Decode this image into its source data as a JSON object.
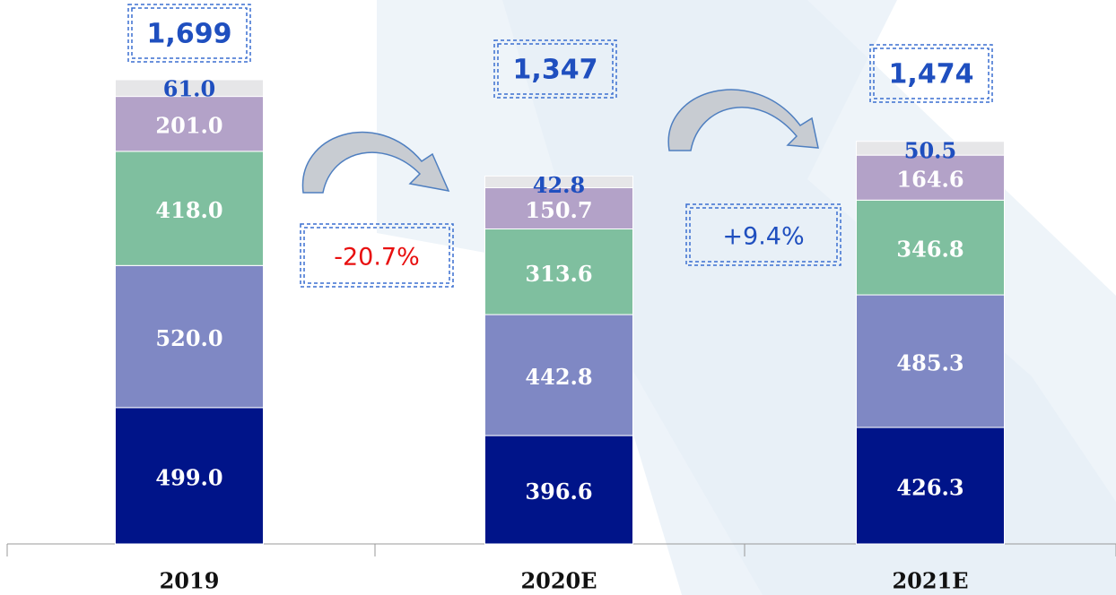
{
  "chart_data": {
    "type": "stacked_bar",
    "categories": [
      "2019",
      "2020E",
      "2021E"
    ],
    "ylim": [
      0,
      1700
    ],
    "series": [
      {
        "color": "#001489",
        "values": [
          499.0,
          396.6,
          426.3
        ],
        "value_labels": [
          "499.0",
          "396.6",
          "426.3"
        ]
      },
      {
        "color": "#7f88c4",
        "values": [
          520.0,
          442.8,
          485.3
        ],
        "value_labels": [
          "520.0",
          "442.8",
          "485.3"
        ]
      },
      {
        "color": "#7fbf9f",
        "values": [
          418.0,
          313.6,
          346.8
        ],
        "value_labels": [
          "418.0",
          "313.6",
          "346.8"
        ]
      },
      {
        "color": "#b3a2c8",
        "values": [
          201.0,
          150.7,
          164.6
        ],
        "value_labels": [
          "201.0",
          "150.7",
          "164.6"
        ]
      },
      {
        "color": "#e6e6e8",
        "values": [
          61.0,
          42.8,
          50.5
        ],
        "value_labels": [
          "61.0",
          "42.8",
          "50.5"
        ]
      }
    ],
    "totals": {
      "values": [
        1699,
        1347,
        1474
      ],
      "value_labels": [
        "1,699",
        "1,347",
        "1,474"
      ]
    },
    "annotations": [
      {
        "text": "-20.7%",
        "color": "#e81010"
      },
      {
        "text": "+9.4%",
        "color": "#1f4fbf"
      }
    ]
  }
}
